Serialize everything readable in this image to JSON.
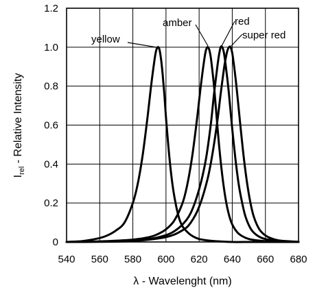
{
  "chart_data": {
    "type": "line",
    "title": "",
    "xlabel": "λ - Wavelenght (nm)",
    "ylabel_main": "I",
    "ylabel_sub": "rel",
    "ylabel_rest": " - Relative Intensity",
    "xlim": [
      540,
      680
    ],
    "ylim": [
      0,
      1.2
    ],
    "xticks": [
      540,
      560,
      580,
      600,
      620,
      640,
      660,
      680
    ],
    "yticks": [
      0,
      0.2,
      0.4,
      0.6,
      0.8,
      1.0,
      1.2
    ],
    "ytick_labels": [
      "0",
      "0.2",
      "0.4",
      "0.6",
      "0.8",
      "1.0",
      "1.2"
    ],
    "grid": true,
    "series": [
      {
        "name": "yellow",
        "x": [
          540,
          550,
          560,
          565,
          570,
          575,
          580,
          583,
          586,
          589,
          591,
          593,
          594,
          595,
          596,
          597,
          598,
          599,
          600,
          602,
          604,
          606,
          608,
          610,
          613,
          616,
          620,
          625,
          630,
          640,
          650,
          660,
          680
        ],
        "y": [
          0.0,
          0.005,
          0.02,
          0.035,
          0.06,
          0.1,
          0.2,
          0.3,
          0.45,
          0.65,
          0.8,
          0.93,
          0.98,
          1.0,
          0.99,
          0.94,
          0.86,
          0.76,
          0.64,
          0.44,
          0.29,
          0.19,
          0.12,
          0.08,
          0.05,
          0.03,
          0.015,
          0.008,
          0.004,
          0.0,
          0.0,
          0.0,
          0.0
        ]
      },
      {
        "name": "amber",
        "x": [
          540,
          560,
          580,
          590,
          595,
          600,
          605,
          610,
          613,
          616,
          619,
          621,
          623,
          624,
          625,
          626,
          627,
          628,
          629,
          630,
          632,
          634,
          636,
          638,
          640,
          643,
          646,
          650,
          655,
          660,
          670,
          680
        ],
        "y": [
          0.0,
          0.003,
          0.012,
          0.025,
          0.04,
          0.065,
          0.11,
          0.2,
          0.3,
          0.45,
          0.65,
          0.8,
          0.93,
          0.98,
          1.0,
          0.99,
          0.95,
          0.88,
          0.8,
          0.7,
          0.5,
          0.34,
          0.22,
          0.14,
          0.09,
          0.05,
          0.03,
          0.015,
          0.008,
          0.004,
          0.001,
          0.0
        ]
      },
      {
        "name": "red",
        "x": [
          540,
          560,
          580,
          590,
          600,
          605,
          610,
          615,
          620,
          624,
          627,
          629,
          631,
          632,
          633,
          634,
          635,
          636,
          637,
          638,
          640,
          642,
          644,
          646,
          648,
          651,
          654,
          658,
          663,
          670,
          680
        ],
        "y": [
          0.0,
          0.002,
          0.008,
          0.015,
          0.035,
          0.055,
          0.09,
          0.15,
          0.27,
          0.42,
          0.6,
          0.76,
          0.9,
          0.96,
          1.0,
          1.0,
          0.97,
          0.91,
          0.84,
          0.76,
          0.58,
          0.42,
          0.29,
          0.2,
          0.13,
          0.07,
          0.04,
          0.02,
          0.01,
          0.004,
          0.0
        ]
      },
      {
        "name": "super red",
        "x": [
          540,
          560,
          580,
          600,
          610,
          615,
          620,
          625,
          628,
          631,
          633,
          635,
          636,
          637,
          638,
          639,
          640,
          641,
          642,
          643,
          645,
          647,
          649,
          651,
          653,
          656,
          659,
          663,
          668,
          675,
          680
        ],
        "y": [
          0.0,
          0.001,
          0.005,
          0.025,
          0.06,
          0.1,
          0.18,
          0.32,
          0.45,
          0.62,
          0.76,
          0.89,
          0.94,
          0.98,
          1.0,
          1.0,
          0.97,
          0.91,
          0.84,
          0.76,
          0.59,
          0.43,
          0.3,
          0.2,
          0.13,
          0.07,
          0.04,
          0.02,
          0.008,
          0.003,
          0.001
        ]
      }
    ],
    "annotations": [
      {
        "text": "yellow",
        "series": "yellow"
      },
      {
        "text": "amber",
        "series": "amber"
      },
      {
        "text": "red",
        "series": "red"
      },
      {
        "text": "super red",
        "series": "super red"
      }
    ]
  }
}
